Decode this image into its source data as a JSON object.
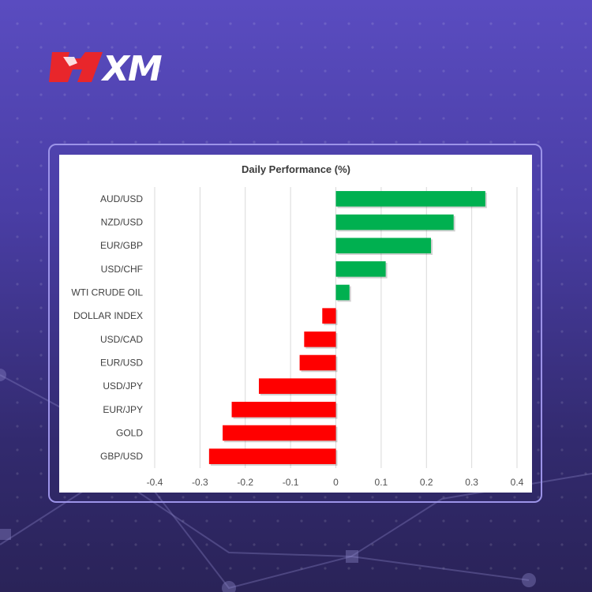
{
  "brand": {
    "logo_text": "XM",
    "logo_icon": "bull-icon",
    "accent": "#e8262b"
  },
  "chart_data": {
    "type": "bar",
    "orientation": "horizontal",
    "title": "Daily Performance (%)",
    "categories": [
      "AUD/USD",
      "NZD/USD",
      "EUR/GBP",
      "USD/CHF",
      "WTI CRUDE OIL",
      "DOLLAR INDEX",
      "USD/CAD",
      "EUR/USD",
      "USD/JPY",
      "EUR/JPY",
      "GOLD",
      "GBP/USD"
    ],
    "values": [
      0.33,
      0.26,
      0.21,
      0.11,
      0.03,
      -0.03,
      -0.07,
      -0.08,
      -0.17,
      -0.23,
      -0.25,
      -0.28
    ],
    "xlim": [
      -0.4,
      0.4
    ],
    "xticks": [
      "-0.4",
      "-0.3",
      "-0.2",
      "-0.1",
      "0",
      "0.1",
      "0.2",
      "0.3",
      "0.4"
    ],
    "xtick_values": [
      -0.4,
      -0.3,
      -0.2,
      -0.1,
      0,
      0.1,
      0.2,
      0.3,
      0.4
    ],
    "grid": true,
    "colors": {
      "positive": "#00b050",
      "negative": "#ff0000",
      "grid": "#d9d9d9"
    }
  }
}
